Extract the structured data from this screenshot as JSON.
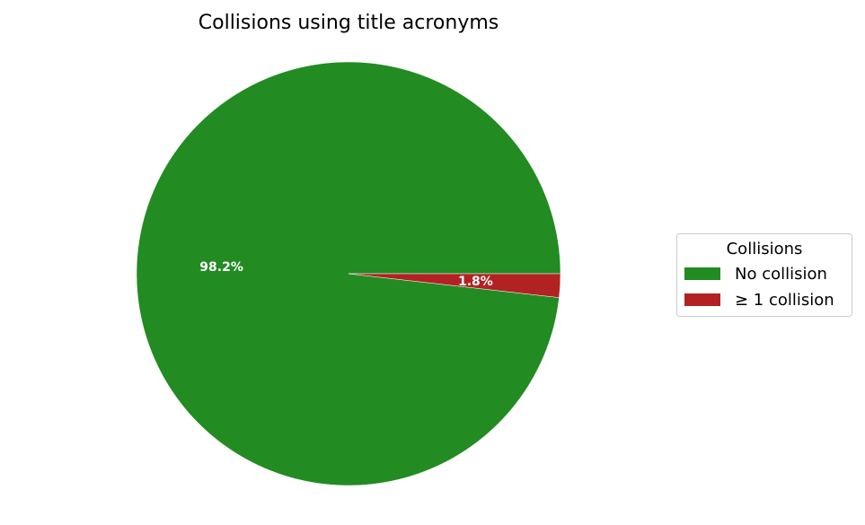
{
  "chart_data": {
    "type": "pie",
    "title": "Collisions using title acronyms",
    "slices": [
      {
        "label": "No collision",
        "value": 98.2,
        "display": "98.2%",
        "color": "#228b22"
      },
      {
        "label": "≥ 1 collision",
        "value": 1.8,
        "display": "1.8%",
        "color": "#b22222"
      }
    ],
    "legend": {
      "title": "Collisions",
      "placement": "right"
    },
    "start_angle_deg": 0,
    "direction": "counterclockwise"
  }
}
